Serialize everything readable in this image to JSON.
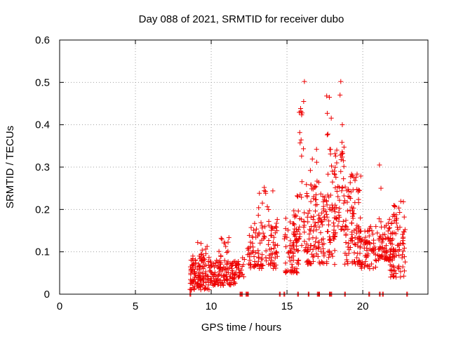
{
  "chart_data": {
    "type": "scatter",
    "title": "Day 088 of 2021, SRMTID for receiver dubo",
    "xlabel": "GPS time / hours",
    "ylabel": "SRMTID / TECUs",
    "xlim": [
      0,
      24.3
    ],
    "ylim": [
      0,
      0.6
    ],
    "xticks": [
      0,
      5,
      10,
      15,
      20
    ],
    "yticks": [
      0,
      0.1,
      0.2,
      0.3,
      0.4,
      0.5,
      0.6
    ],
    "ytick_labels": [
      "0",
      "0.1",
      "0.2",
      "0.3",
      "0.4",
      "0.5",
      "0.6"
    ],
    "grid": true,
    "marker": "+",
    "colors": {
      "series": "#ee0000",
      "grid": "#a0a0a0",
      "axis": "#000000"
    },
    "clusters": [
      {
        "x": [
          8.6,
          9.9
        ],
        "y": [
          0.01,
          0.09
        ],
        "n": 120
      },
      {
        "x": [
          9.1,
          9.9
        ],
        "y": [
          0.08,
          0.13
        ],
        "n": 12
      },
      {
        "x": [
          9.9,
          11.6
        ],
        "y": [
          0.02,
          0.08
        ],
        "n": 120
      },
      {
        "x": [
          10.5,
          11.4
        ],
        "y": [
          0.08,
          0.135
        ],
        "n": 12
      },
      {
        "x": [
          11.6,
          12.3
        ],
        "y": [
          0.04,
          0.09
        ],
        "n": 25
      },
      {
        "x": [
          12.4,
          14.4
        ],
        "y": [
          0.06,
          0.17
        ],
        "n": 110
      },
      {
        "x": [
          13.1,
          14.4
        ],
        "y": [
          0.15,
          0.25
        ],
        "n": 18
      },
      {
        "x": [
          14.8,
          15.8
        ],
        "y": [
          0.05,
          0.2
        ],
        "n": 70
      },
      {
        "x": [
          15.4,
          16.4
        ],
        "y": [
          0.1,
          0.27
        ],
        "n": 40
      },
      {
        "x": [
          15.8,
          16.1
        ],
        "y": [
          0.3,
          0.45
        ],
        "n": 10
      },
      {
        "x": [
          16.3,
          17.3
        ],
        "y": [
          0.07,
          0.25
        ],
        "n": 70
      },
      {
        "x": [
          16.5,
          17.1
        ],
        "y": [
          0.25,
          0.34
        ],
        "n": 10
      },
      {
        "x": [
          17.2,
          18.2
        ],
        "y": [
          0.07,
          0.25
        ],
        "n": 70
      },
      {
        "x": [
          17.6,
          18.1
        ],
        "y": [
          0.28,
          0.47
        ],
        "n": 10
      },
      {
        "x": [
          18.0,
          18.8
        ],
        "y": [
          0.15,
          0.36
        ],
        "n": 55
      },
      {
        "x": [
          18.8,
          19.9
        ],
        "y": [
          0.07,
          0.29
        ],
        "n": 90
      },
      {
        "x": [
          19.6,
          20.9
        ],
        "y": [
          0.06,
          0.16
        ],
        "n": 80
      },
      {
        "x": [
          20.9,
          22.0
        ],
        "y": [
          0.08,
          0.18
        ],
        "n": 80
      },
      {
        "x": [
          21.8,
          22.8
        ],
        "y": [
          0.04,
          0.22
        ],
        "n": 80
      }
    ],
    "outliers": [
      {
        "x": 16.15,
        "y": 0.502
      },
      {
        "x": 18.55,
        "y": 0.502
      },
      {
        "x": 18.5,
        "y": 0.47
      },
      {
        "x": 17.8,
        "y": 0.465
      },
      {
        "x": 16.1,
        "y": 0.455
      },
      {
        "x": 18.65,
        "y": 0.4
      },
      {
        "x": 17.7,
        "y": 0.378
      },
      {
        "x": 21.1,
        "y": 0.305
      },
      {
        "x": 16.95,
        "y": 0.342
      },
      {
        "x": 13.5,
        "y": 0.252
      },
      {
        "x": 21.2,
        "y": 0.25
      }
    ],
    "baseline_points_x": [
      8.6,
      11.9,
      12.0,
      12.3,
      12.4,
      14.5,
      14.8,
      15.7,
      16.4,
      17.0,
      17.1,
      17.8,
      17.9,
      18.8,
      20.4,
      21.1,
      21.3,
      22.9
    ]
  }
}
